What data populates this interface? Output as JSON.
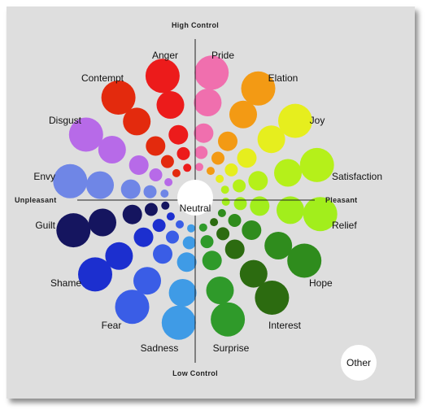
{
  "axes": {
    "top": "High Control",
    "bottom": "Low Control",
    "left": "Unpleasant",
    "right": "Pleasant"
  },
  "center_label": "Neutral",
  "other_label": "Other",
  "emotions": [
    {
      "name": "Pride",
      "color": "#f06fae"
    },
    {
      "name": "Elation",
      "color": "#f39a14"
    },
    {
      "name": "Joy",
      "color": "#e6ee1e"
    },
    {
      "name": "Satisfaction",
      "color": "#b5f01a"
    },
    {
      "name": "Relief",
      "color": "#a2ee1c"
    },
    {
      "name": "Hope",
      "color": "#2f8c1d"
    },
    {
      "name": "Interest",
      "color": "#2c6b10"
    },
    {
      "name": "Surprise",
      "color": "#2f9a2a"
    },
    {
      "name": "Sadness",
      "color": "#3f9be6"
    },
    {
      "name": "Fear",
      "color": "#3a5de6"
    },
    {
      "name": "Shame",
      "color": "#1c2fcf"
    },
    {
      "name": "Guilt",
      "color": "#15155f"
    },
    {
      "name": "Envy",
      "color": "#6f86e6"
    },
    {
      "name": "Disgust",
      "color": "#b76ae8"
    },
    {
      "name": "Contempt",
      "color": "#e32a0d"
    },
    {
      "name": "Anger",
      "color": "#ec1b1b"
    }
  ]
}
